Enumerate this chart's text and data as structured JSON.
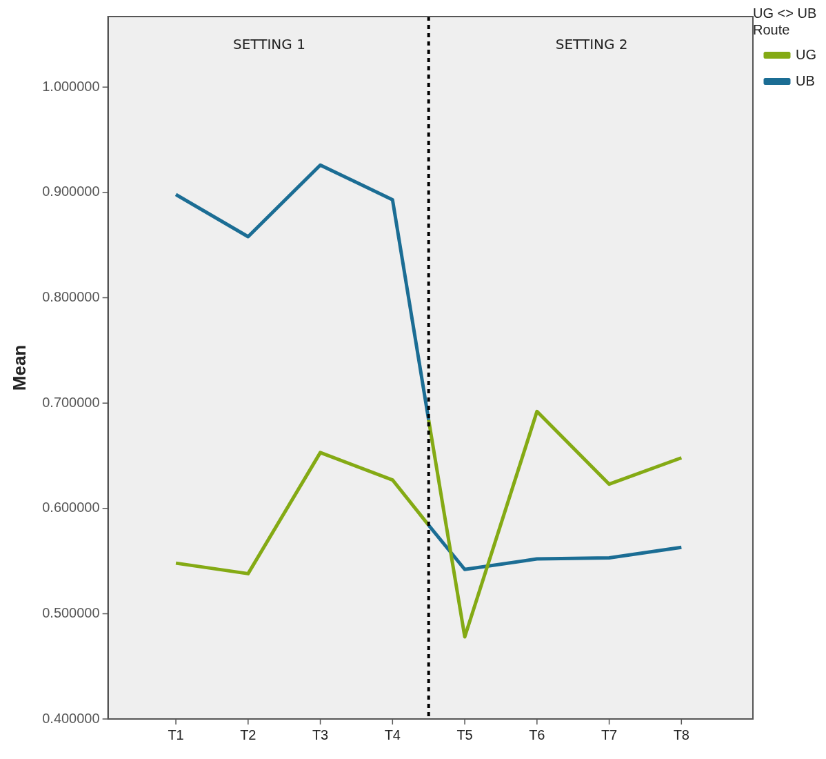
{
  "chart_data": {
    "type": "line",
    "ylabel": "Mean",
    "legend_title": "UG <> UB Route",
    "legend": "top right",
    "marker": "none",
    "line_style": "solid",
    "categories": [
      "T1",
      null,
      "T2",
      null,
      "T3",
      null,
      "T4",
      null,
      "T5",
      null,
      "T6",
      null,
      "T7",
      null,
      "T8"
    ],
    "ylim": [
      0.4,
      1.067
    ],
    "yticks": [
      {
        "value": 0.4,
        "label": "0.400000"
      },
      {
        "value": 0.5,
        "label": "0.500000"
      },
      {
        "value": 0.6,
        "label": "0.600000"
      },
      {
        "value": 0.7,
        "label": "0.700000"
      },
      {
        "value": 0.8,
        "label": "0.800000"
      },
      {
        "value": 0.9,
        "label": "0.900000"
      },
      {
        "value": 1.0,
        "label": "1.000000"
      }
    ],
    "series": [
      {
        "name": "UG",
        "color": "#84aa14",
        "values": [
          0.548,
          null,
          0.538,
          null,
          0.653,
          null,
          0.627,
          0.584,
          null,
          null,
          null,
          null,
          null,
          null,
          null
        ]
      },
      {
        "color": "#84aa14",
        "values": [
          null,
          null,
          null,
          null,
          null,
          null,
          null,
          0.684,
          0.478,
          null,
          0.692,
          null,
          0.623,
          null,
          0.648
        ]
      },
      {
        "name": "UB",
        "color": "#1b6d94",
        "values": [
          0.898,
          null,
          0.858,
          null,
          0.926,
          null,
          0.893,
          0.684,
          null,
          null,
          null,
          null,
          null,
          null,
          null
        ]
      },
      {
        "color": "#1b6d94",
        "values": [
          null,
          null,
          null,
          null,
          null,
          null,
          null,
          0.584,
          0.542,
          null,
          0.552,
          null,
          0.553,
          null,
          0.563
        ]
      }
    ],
    "annotations": [
      "SETTING 1",
      "SETTING 2"
    ]
  }
}
